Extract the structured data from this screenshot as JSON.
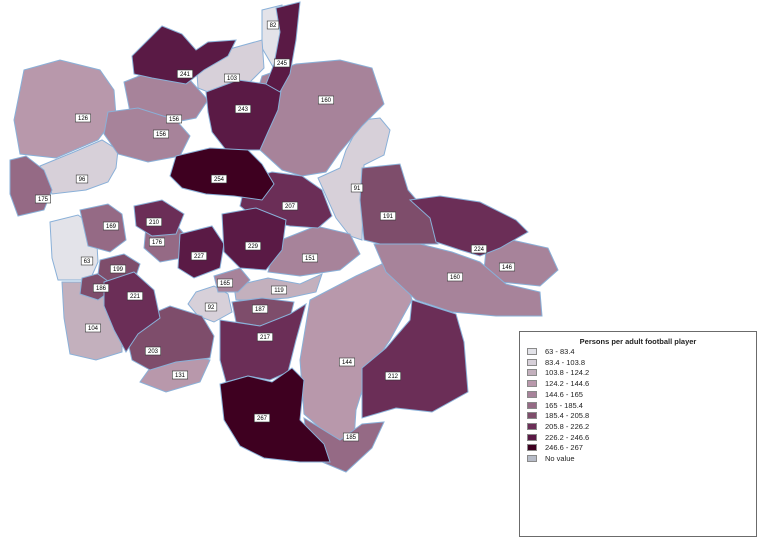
{
  "legend": {
    "title": "Persons per adult football player",
    "classes": [
      {
        "label": "63 - 83.4",
        "color": "#e3e3e9"
      },
      {
        "label": "83.4 - 103.8",
        "color": "#d7d0d9"
      },
      {
        "label": "103.8 - 124.2",
        "color": "#c3b0bd"
      },
      {
        "label": "124.2 - 144.6",
        "color": "#b898ab"
      },
      {
        "label": "144.6 - 165",
        "color": "#a7839a"
      },
      {
        "label": "165 - 185.4",
        "color": "#956a85"
      },
      {
        "label": "185.4 - 205.8",
        "color": "#7e4d6b"
      },
      {
        "label": "205.8 - 226.2",
        "color": "#6b2e57"
      },
      {
        "label": "226.2 - 246.6",
        "color": "#5a1a45"
      },
      {
        "label": "246.6 - 267",
        "color": "#3e0020"
      },
      {
        "label": "No value",
        "color": "#b7bcc8"
      }
    ]
  },
  "districts": [
    {
      "value": 63,
      "class": 0
    },
    {
      "value": 82,
      "class": 0
    },
    {
      "value": 91,
      "class": 1
    },
    {
      "value": 92,
      "class": 1
    },
    {
      "value": 96,
      "class": 1
    },
    {
      "value": 103,
      "class": 1
    },
    {
      "value": 104,
      "class": 2
    },
    {
      "value": 119,
      "class": 2
    },
    {
      "value": 126,
      "class": 3
    },
    {
      "value": 131,
      "class": 3
    },
    {
      "value": 144,
      "class": 3
    },
    {
      "value": 146,
      "class": 4
    },
    {
      "value": 151,
      "class": 4
    },
    {
      "value": 156,
      "class": 4
    },
    {
      "value": 156,
      "class": 4
    },
    {
      "value": 160,
      "class": 4
    },
    {
      "value": 160,
      "class": 4
    },
    {
      "value": 165,
      "class": 4
    },
    {
      "value": 169,
      "class": 5
    },
    {
      "value": 175,
      "class": 5
    },
    {
      "value": 176,
      "class": 5
    },
    {
      "value": 185,
      "class": 5
    },
    {
      "value": 186,
      "class": 6
    },
    {
      "value": 187,
      "class": 6
    },
    {
      "value": 191,
      "class": 6
    },
    {
      "value": 199,
      "class": 6
    },
    {
      "value": 203,
      "class": 6
    },
    {
      "value": 207,
      "class": 7
    },
    {
      "value": 210,
      "class": 7
    },
    {
      "value": 212,
      "class": 7
    },
    {
      "value": 217,
      "class": 7
    },
    {
      "value": 221,
      "class": 7
    },
    {
      "value": 224,
      "class": 7
    },
    {
      "value": 227,
      "class": 8
    },
    {
      "value": 229,
      "class": 8
    },
    {
      "value": 241,
      "class": 8
    },
    {
      "value": 243,
      "class": 8
    },
    {
      "value": 245,
      "class": 8
    },
    {
      "value": 254,
      "class": 9
    },
    {
      "value": 267,
      "class": 9
    }
  ]
}
